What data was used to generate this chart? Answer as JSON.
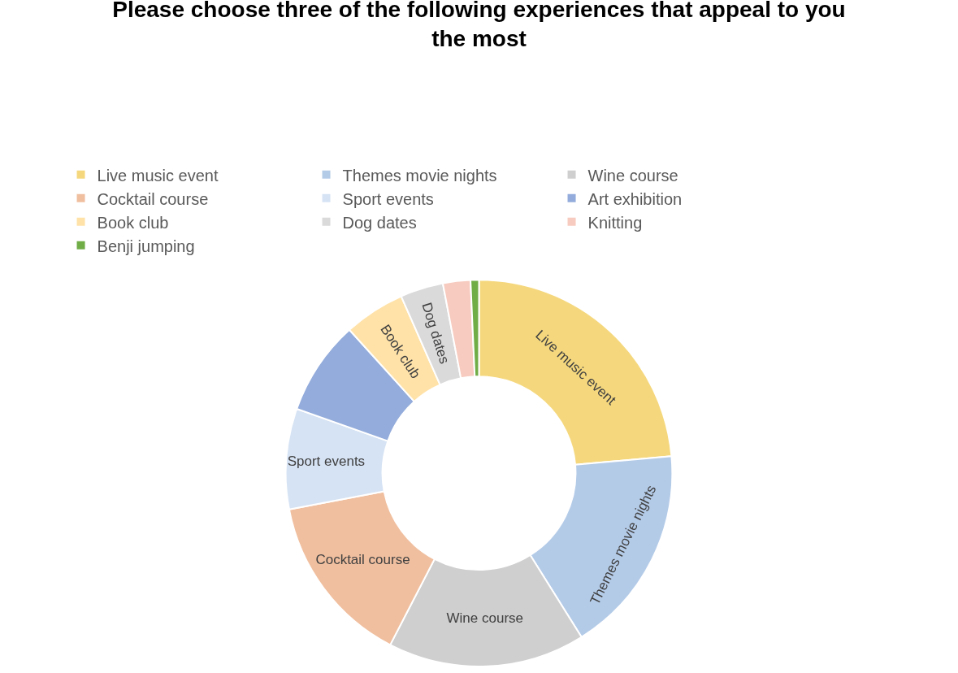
{
  "chart_data": {
    "type": "donut",
    "title": "Please choose three of the following experiences that appeal to you the most",
    "categories": [
      "Live music event",
      "Themes movie nights",
      "Wine course",
      "Cocktail course",
      "Sport events",
      "Art exhibition",
      "Book club",
      "Dog dates",
      "Knitting",
      "Benji jumping"
    ],
    "values": [
      23.6,
      17.5,
      16.5,
      14.4,
      8.4,
      7.9,
      5.1,
      3.6,
      2.3,
      0.7
    ],
    "colors": [
      "#f5d87e",
      "#b4cbe8",
      "#cfcfcf",
      "#f0bf9f",
      "#d6e3f4",
      "#93acdb",
      "#ffe2a8",
      "#dadada",
      "#f7cbbf",
      "#70ad47"
    ],
    "value_labels": [
      "Live music event",
      "Themes movie nights",
      "Wine course",
      "Cocktail course",
      "Sport events",
      null,
      "Book club",
      "Dog dates",
      null,
      null
    ],
    "legend": "top"
  }
}
